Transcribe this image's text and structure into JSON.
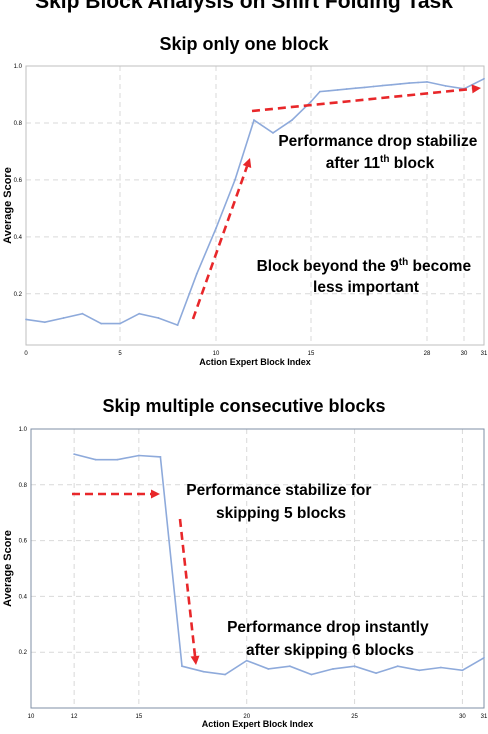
{
  "title": "Skip Block Analysis on Shirt Folding Task",
  "chart_data": [
    {
      "type": "line",
      "title": "Skip only one block",
      "xlabel": "Action Expert Block Index",
      "ylabel": "Average Score",
      "x": [
        0,
        1,
        2,
        3,
        4,
        5,
        6,
        7,
        8,
        9,
        10,
        11,
        12,
        13,
        14,
        15,
        16,
        17,
        18,
        19,
        20,
        21,
        22,
        23,
        24,
        25,
        26,
        27,
        28,
        29,
        30,
        31
      ],
      "x_tick_labels": [
        "0",
        "5",
        "10",
        "15",
        "28",
        "30",
        "31"
      ],
      "x_tick_positions": [
        0,
        5,
        10,
        15,
        28,
        30,
        31
      ],
      "ylim": [
        0.02,
        1.0
      ],
      "y_ticks": [
        0.2,
        0.4,
        0.6,
        0.8,
        1.0
      ],
      "y_tick_labels": [
        "0.2",
        "0.4",
        "0.6",
        "0.8",
        "1.0"
      ],
      "series": [
        {
          "color": "#8eaadb",
          "values": [
            0.11,
            0.1,
            0.115,
            0.13,
            0.095,
            0.095,
            0.13,
            0.115,
            0.09,
            0.27,
            0.43,
            0.6,
            0.81,
            0.765,
            0.81,
            0.875,
            0.91,
            0.913,
            0.916,
            0.919,
            0.922,
            0.925,
            0.928,
            0.931,
            0.934,
            0.937,
            0.94,
            0.942,
            0.944,
            0.93,
            0.92,
            0.955
          ]
        }
      ],
      "grid": true,
      "annotations": [
        {
          "lines": [
            "Performance drop stabilize",
            "after 11th block"
          ]
        },
        {
          "lines": [
            "Block beyond the 9th become",
            "less important"
          ]
        }
      ]
    },
    {
      "type": "line",
      "title": "Skip multiple consecutive blocks",
      "xlabel": "Action Expert Block Index",
      "ylabel": "Average Score",
      "x": [
        12,
        13,
        14,
        15,
        16,
        17,
        18,
        19,
        20,
        21,
        22,
        23,
        24,
        25,
        26,
        27,
        28,
        29,
        30,
        31
      ],
      "x_tick_labels": [
        "10",
        "12",
        "15",
        "20",
        "25",
        "30",
        "31"
      ],
      "x_tick_positions": [
        10,
        12,
        15,
        20,
        25,
        30,
        31
      ],
      "ylim": [
        0.0,
        1.0
      ],
      "y_ticks": [
        0.2,
        0.4,
        0.6,
        0.8,
        1.0
      ],
      "y_tick_labels": [
        "0.2",
        "0.4",
        "0.6",
        "0.8",
        "1.0"
      ],
      "series": [
        {
          "color": "#8eaadb",
          "values": [
            0.91,
            0.89,
            0.89,
            0.905,
            0.9,
            0.15,
            0.13,
            0.12,
            0.17,
            0.14,
            0.15,
            0.12,
            0.14,
            0.15,
            0.125,
            0.15,
            0.135,
            0.145,
            0.135,
            0.18
          ]
        }
      ],
      "grid": true,
      "annotations": [
        {
          "lines": [
            "Performance stabilize for",
            "skipping 5 blocks"
          ]
        },
        {
          "lines": [
            "Performance drop instantly",
            "after skipping 6 blocks"
          ]
        }
      ]
    }
  ]
}
